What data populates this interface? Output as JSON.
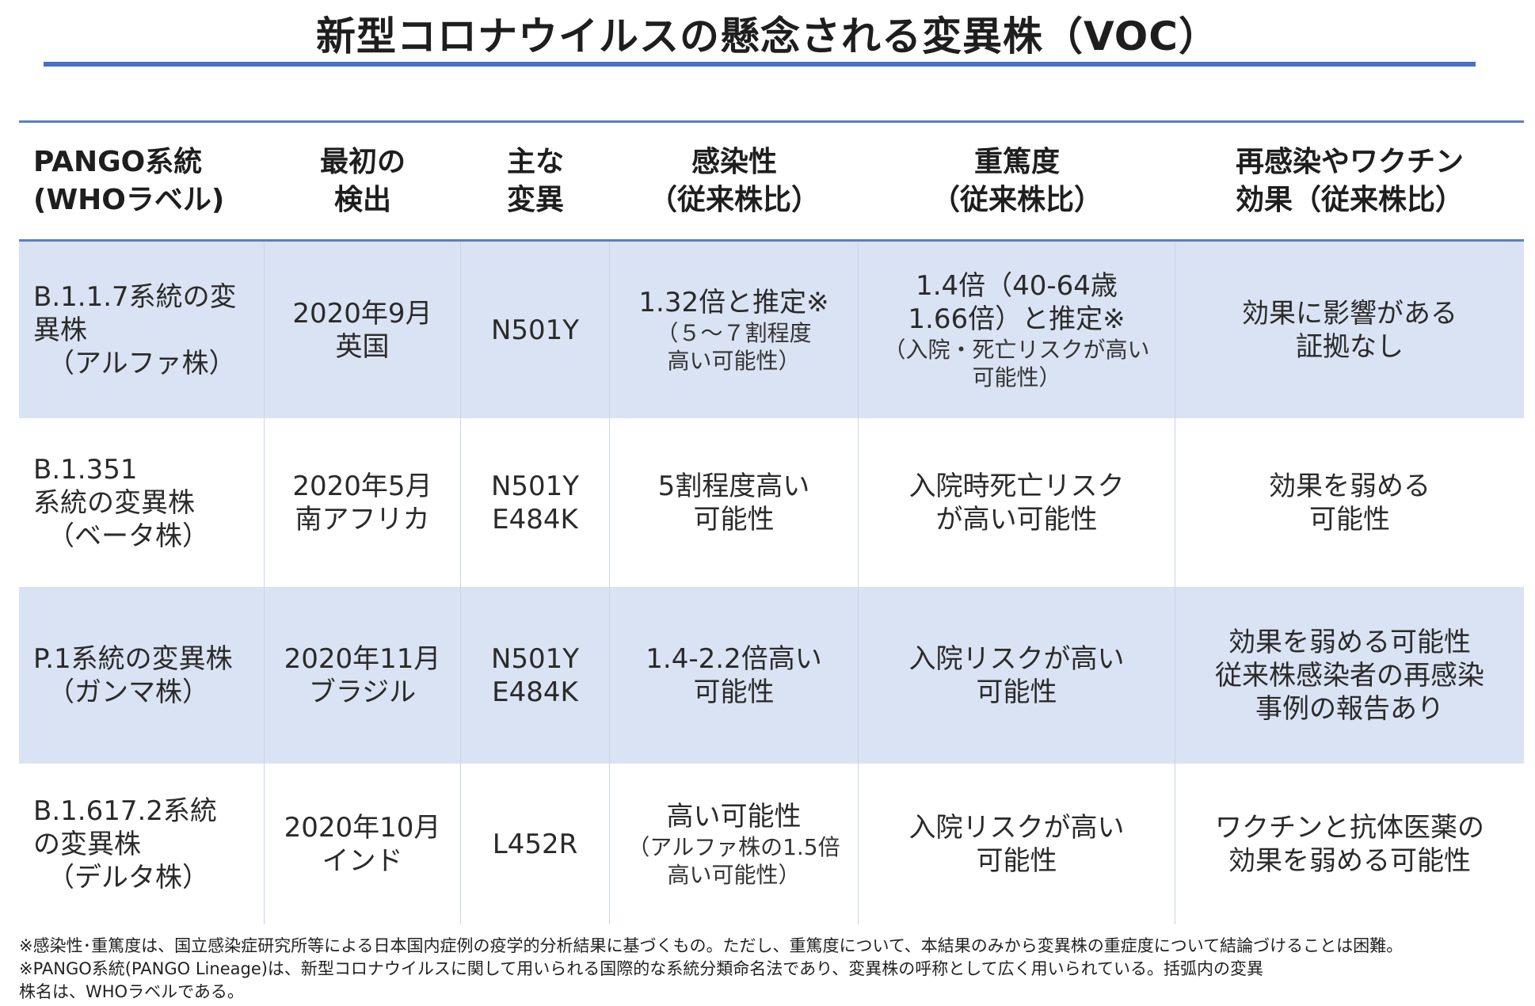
{
  "title": "新型コロナウイルスの懸念される変異株（VOC）",
  "header": {
    "c1": [
      "PANGO系統",
      "(WHOラベル)"
    ],
    "c2": [
      "最初の",
      "検出"
    ],
    "c3": [
      "主な",
      "変異"
    ],
    "c4": [
      "感染性",
      "（従来株比）"
    ],
    "c5": [
      "重篤度",
      "（従来株比）"
    ],
    "c6": [
      "再感染やワクチン",
      "効果（従来株比）"
    ]
  },
  "rows": [
    {
      "lineage": [
        "B.1.1.7系統の変",
        "異株",
        "（アルファ株）"
      ],
      "first": [
        "2020年9月",
        "英国"
      ],
      "mutation": [
        "N501Y"
      ],
      "infectivity": [
        "1.32倍と推定※"
      ],
      "infectivity_note": [
        "（５～７割程度",
        "高い可能性）"
      ],
      "severity": [
        "1.4倍（40-64歳",
        "1.66倍）と推定※"
      ],
      "severity_note": [
        "（入院・死亡リスクが高い",
        "可能性）"
      ],
      "vaccine": [
        "効果に影響がある",
        "証拠なし"
      ]
    },
    {
      "lineage": [
        "B.1.351",
        "系統の変異株",
        "（ベータ株）"
      ],
      "first": [
        "2020年5月",
        "南アフリカ"
      ],
      "mutation": [
        "N501Y",
        "E484K"
      ],
      "infectivity": [
        "5割程度高い",
        "可能性"
      ],
      "severity": [
        "入院時死亡リスク",
        "が高い可能性"
      ],
      "vaccine": [
        "効果を弱める",
        "可能性"
      ]
    },
    {
      "lineage": [
        "P.1系統の変異株",
        "（ガンマ株）"
      ],
      "first": [
        "2020年11月",
        "ブラジル"
      ],
      "mutation": [
        "N501Y",
        "E484K"
      ],
      "infectivity": [
        "1.4-2.2倍高い",
        "可能性"
      ],
      "severity": [
        "入院リスクが高い",
        "可能性"
      ],
      "vaccine": [
        "効果を弱める可能性",
        "従来株感染者の再感染",
        "事例の報告あり"
      ]
    },
    {
      "lineage": [
        "B.1.617.2系統",
        "の変異株",
        "（デルタ株）"
      ],
      "first": [
        "2020年10月",
        "インド"
      ],
      "mutation": [
        "L452R"
      ],
      "infectivity": [
        "高い可能性"
      ],
      "infectivity_note": [
        "（アルファ株の1.5倍",
        "高い可能性）"
      ],
      "severity": [
        "入院リスクが高い",
        "可能性"
      ],
      "vaccine": [
        "ワクチンと抗体医薬の",
        "効果を弱める可能性"
      ]
    }
  ],
  "footnotes": [
    "※感染性･重篤度は、国立感染症研究所等による日本国内症例の疫学的分析結果に基づくもの。ただし、重篤度について、本結果のみから変異株の重症度について結論づけることは困難。",
    "※PANGO系統(PANGO Lineage)は、新型コロナウイルスに関して用いられる国際的な系統分類命名法であり、変異株の呼称として広く用いられている。括弧内の変異",
    "株名は、WHOラベルである。"
  ],
  "colors": {
    "accent": "#4472c4",
    "band": "#dae3f3"
  }
}
